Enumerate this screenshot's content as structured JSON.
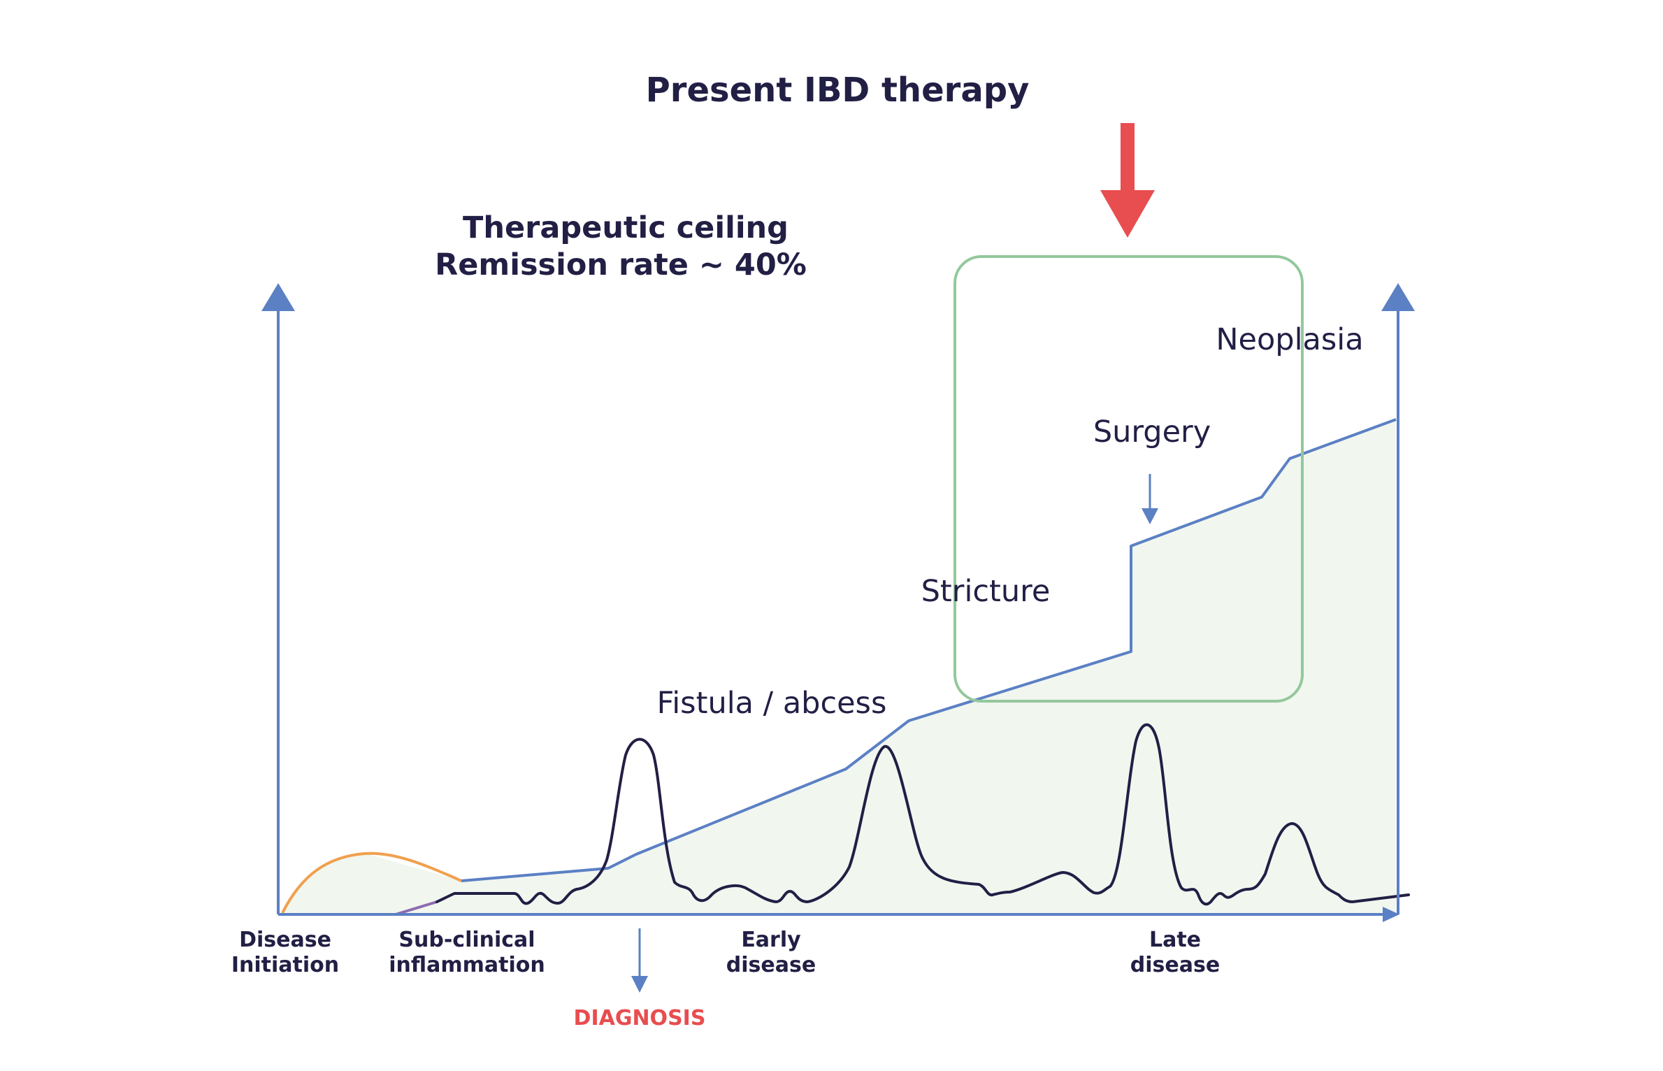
{
  "title": "Present IBD therapy",
  "ceiling": {
    "line1": "Therapeutic ceiling",
    "line2": "Remission rate ~ 40%"
  },
  "complications": {
    "fistula": "Fistula / abcess",
    "stricture": "Stricture",
    "surgery": "Surgery",
    "neoplasia": "Neoplasia"
  },
  "stages": {
    "initiation_1": "Disease",
    "initiation_2": "Initiation",
    "subclinical_1": "Sub-clinical",
    "subclinical_2": "inflammation",
    "early_1": "Early",
    "early_2": "disease",
    "late_1": "Late",
    "late_2": "disease"
  },
  "diagnosis": "DIAGNOSIS",
  "colors": {
    "axis": "#5b80c4",
    "damage_line": "#5b80c4",
    "damage_fill": "#f1f6ef",
    "activity_line": "#221f45",
    "early_curve": "#f0a04e",
    "highlight_box": "#93c89c",
    "focus_arrow": "#e84d4f",
    "text": "#221f45",
    "diagnosis_text": "#e84d4f"
  }
}
